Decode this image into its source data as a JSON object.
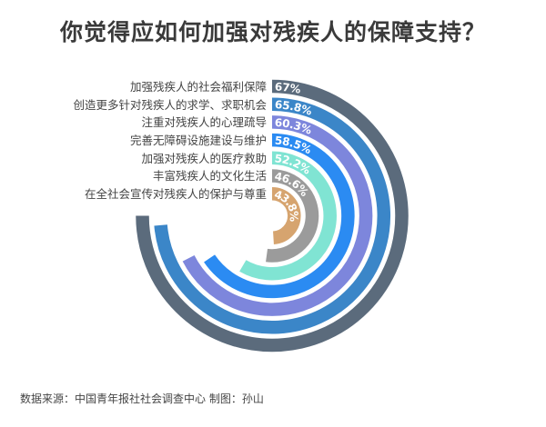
{
  "title": "你觉得应如何加强对残疾人的保障支持？",
  "source": "数据来源：中国青年报社社会调查中心 制图：孙山",
  "chart_data": {
    "type": "radial-bar",
    "title": "你觉得应如何加强对残疾人的保障支持？",
    "categories": [
      "加强残疾人的社会福利保障",
      "创造更多针对残疾人的求学、求职机会",
      "注重对残疾人的心理疏导",
      "完善无障碍设施建设与维护",
      "加强对残疾人的医疗救助",
      "丰富残疾人的文化生活",
      "在全社会宣传对残疾人的保护与尊重"
    ],
    "values": [
      67,
      65.8,
      60.3,
      58.5,
      52.2,
      46.6,
      43.8
    ],
    "value_labels": [
      "67%",
      "65.8%",
      "60.3%",
      "58.5%",
      "52.2%",
      "46.6%",
      "43.8%"
    ],
    "unit": "%",
    "colors": [
      "#5b6b7c",
      "#3b86c8",
      "#7d86dc",
      "#2b8bf2",
      "#80e4d3",
      "#9b9b9b",
      "#d6a46f"
    ],
    "start": "top",
    "direction": "clockwise"
  }
}
